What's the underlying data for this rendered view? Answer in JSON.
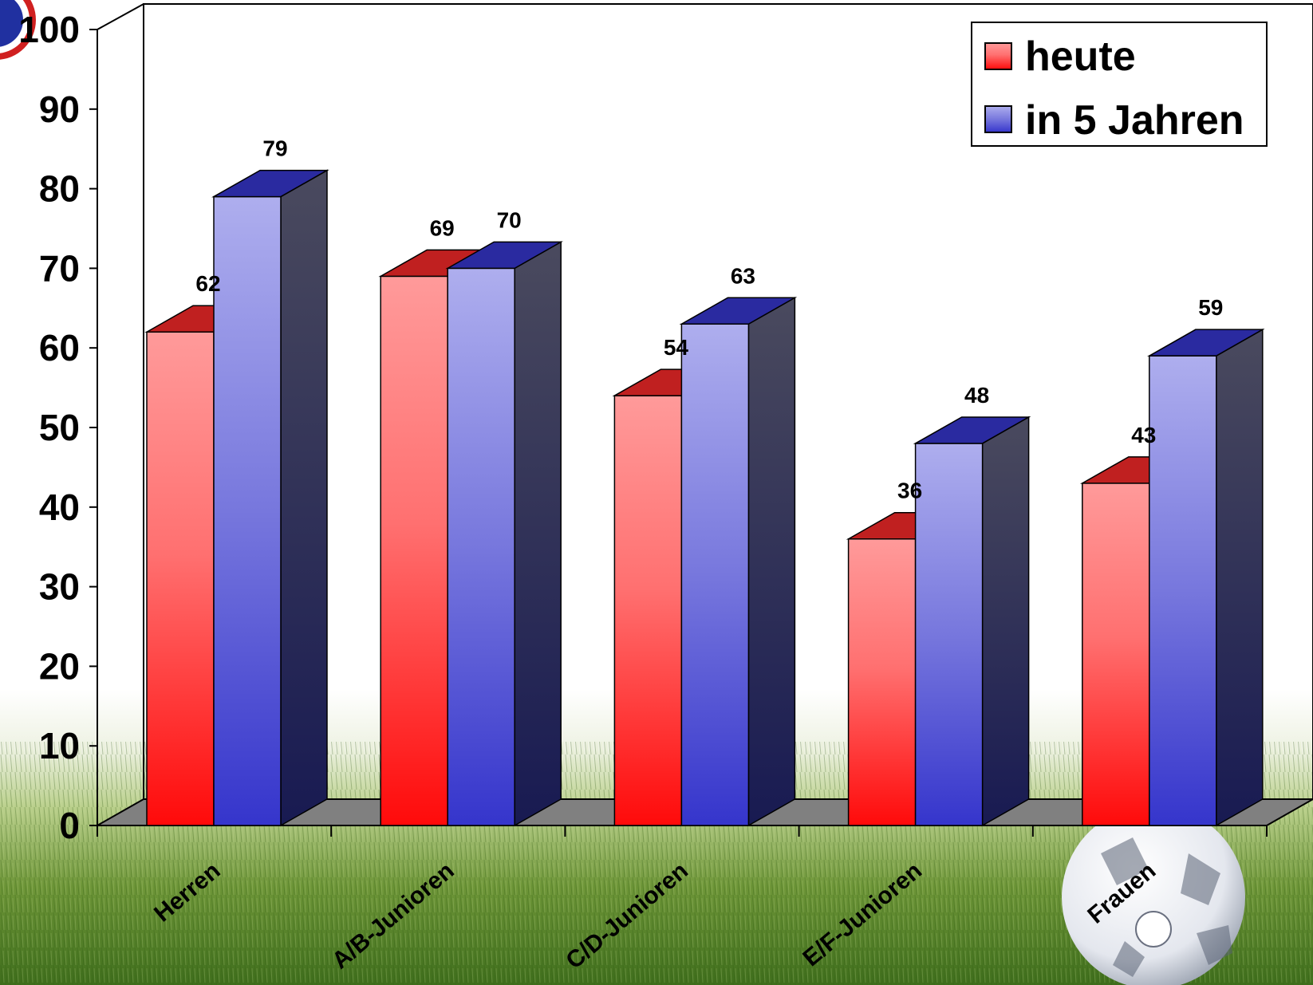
{
  "chart_data": {
    "type": "bar",
    "style": "3d-clustered",
    "categories": [
      "Herren",
      "A/B-Junioren",
      "C/D-Junioren",
      "E/F-Junioren",
      "Frauen"
    ],
    "series": [
      {
        "name": "heute",
        "values": [
          62,
          69,
          54,
          36,
          43
        ],
        "color": "#ff2a2a"
      },
      {
        "name": "in 5 Jahren",
        "values": [
          79,
          70,
          63,
          48,
          59
        ],
        "color": "#3b3bd0"
      }
    ],
    "ylim": [
      0,
      100
    ],
    "yticks": [
      "0",
      "10",
      "20",
      "30",
      "40",
      "50",
      "60",
      "70",
      "80",
      "90",
      "100"
    ],
    "grid": false,
    "legend_position": "top-right",
    "data_labels": true
  },
  "colors": {
    "heute_light": "#ff9a9a",
    "heute_dark": "#ff0a0a",
    "jahre_light": "#aeaeee",
    "jahre_dark": "#3535cc",
    "side_light": "#4a4a5e",
    "side_dark": "#181a52",
    "floor": "#808080",
    "grass_dark": "#3f6e1c",
    "grass_light": "#b9cf8b"
  }
}
